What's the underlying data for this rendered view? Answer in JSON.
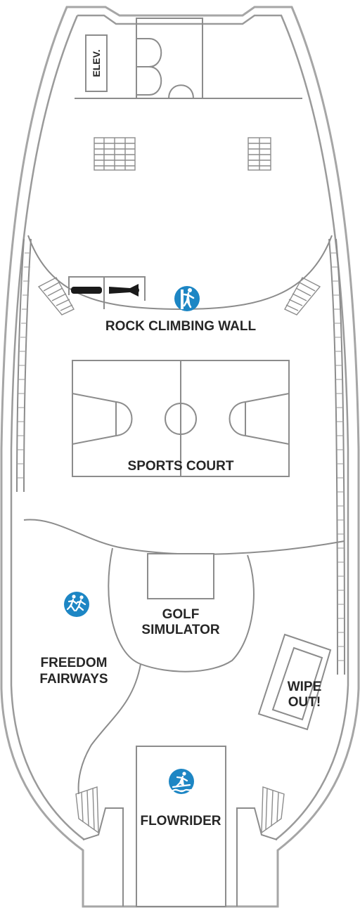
{
  "deck": {
    "elevator_label": "ELEV.",
    "areas": {
      "rock_climbing_wall": "ROCK CLIMBING WALL",
      "sports_court": "SPORTS COURT",
      "golf_simulator": [
        "GOLF",
        "SIMULATOR"
      ],
      "freedom_fairways": [
        "FREEDOM",
        "FAIRWAYS"
      ],
      "wipe_out": [
        "WIPE",
        "OUT!"
      ],
      "flowrider": "FLOWRIDER"
    },
    "icons": [
      "restroom-men-icon",
      "restroom-women-icon",
      "rock-climbing-icon",
      "jogging-track-icon",
      "surfing-icon"
    ],
    "colors": {
      "icon_badge": "#1d86c4",
      "outline": "#8c8c8c",
      "text": "#262626"
    }
  }
}
